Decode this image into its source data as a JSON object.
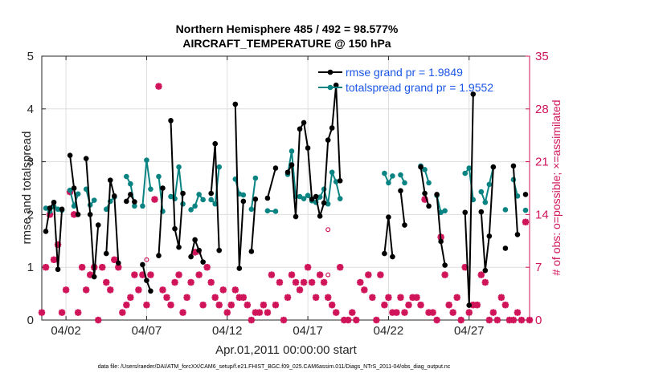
{
  "chart_data": {
    "type": "line",
    "title": "Northern Hemisphere 485 / 492 = 98.577%",
    "subtitle": "AIRCRAFT_TEMPERATURE @ 150 hPa",
    "xlabel": "Apr.01,2011 00:00:00 start",
    "ylabel": "rmse and totalspread",
    "ylabel_right": "# of obs: o=possible; ×=assimilated",
    "footer": "data file: /Users/raeder/DAI/ATM_forcXX/CAM6_setup/f.e21.FHIST_BGC.f09_025.CAM6assim.011/Diags_NTrS_2011-04/obs_diag_output.nc",
    "xlim": [
      0.5,
      30.75
    ],
    "ylim": [
      0,
      5
    ],
    "ylim_right": [
      0,
      35
    ],
    "x_ticks": [
      {
        "x": 2,
        "label": "04/02"
      },
      {
        "x": 7,
        "label": "04/07"
      },
      {
        "x": 12,
        "label": "04/12"
      },
      {
        "x": 17,
        "label": "04/17"
      },
      {
        "x": 22,
        "label": "04/22"
      },
      {
        "x": 27,
        "label": "04/27"
      }
    ],
    "y_ticks": [
      {
        "v": 0,
        "label": "0"
      },
      {
        "v": 1,
        "label": "1"
      },
      {
        "v": 2,
        "label": "2"
      },
      {
        "v": 3,
        "label": "3"
      },
      {
        "v": 4,
        "label": "4"
      },
      {
        "v": 5,
        "label": "5"
      }
    ],
    "y_ticks_right": [
      {
        "v": 0,
        "label": "0"
      },
      {
        "v": 7,
        "label": "7"
      },
      {
        "v": 14,
        "label": "14"
      },
      {
        "v": 21,
        "label": "21"
      },
      {
        "v": 28,
        "label": "28"
      },
      {
        "v": 35,
        "label": "35"
      }
    ],
    "grid": true,
    "legend": {
      "placement": "top-right",
      "entries": [
        "rmse grand pr = 1.9849",
        "totalspread grand pr = 1.9552"
      ]
    },
    "series": [
      {
        "name": "rmse grand pr = 1.9849",
        "color": "#000000",
        "segments": [
          [
            [
              0.75,
              1.68
            ],
            [
              1.0,
              2.12
            ],
            [
              1.25,
              2.23
            ],
            [
              1.5,
              0.96
            ],
            [
              1.75,
              2.1
            ]
          ],
          [
            [
              2.25,
              3.12
            ],
            [
              2.5,
              2.5
            ],
            [
              2.75,
              2.0
            ]
          ],
          [
            [
              3.25,
              3.06
            ],
            [
              3.5,
              2.0
            ],
            [
              3.75,
              0.82
            ],
            [
              4.0,
              1.8
            ]
          ],
          [
            [
              4.5,
              1.26
            ],
            [
              4.75,
              2.65
            ],
            [
              5.0,
              2.35
            ],
            [
              5.25,
              1.08
            ]
          ],
          [
            [
              5.75,
              2.25
            ],
            [
              6.0,
              2.38
            ],
            [
              6.25,
              2.24
            ]
          ],
          [
            [
              6.75,
              1.05
            ],
            [
              7.0,
              0.75
            ],
            [
              7.25,
              0.55
            ]
          ],
          [
            [
              7.75,
              1.22
            ],
            [
              8.0,
              2.5
            ]
          ],
          [
            [
              8.5,
              3.78
            ],
            [
              8.75,
              1.73
            ],
            [
              9.0,
              1.38
            ],
            [
              9.25,
              2.4
            ]
          ],
          [
            [
              9.75,
              1.2
            ],
            [
              10.0,
              1.52
            ],
            [
              10.25,
              1.32
            ],
            [
              10.5,
              1.1
            ]
          ],
          [
            [
              11.0,
              2.4
            ],
            [
              11.25,
              3.34
            ],
            [
              11.5,
              1.32
            ]
          ],
          [
            [
              12.5,
              4.09
            ],
            [
              12.75,
              0.98
            ],
            [
              13.0,
              2.25
            ]
          ],
          [
            [
              13.5,
              1.3
            ],
            [
              13.75,
              2.29
            ]
          ],
          [
            [
              14.5,
              2.31
            ],
            [
              15.0,
              2.88
            ]
          ],
          [
            [
              15.75,
              2.8
            ],
            [
              16.0,
              2.94
            ],
            [
              16.25,
              1.96
            ],
            [
              16.5,
              3.62
            ],
            [
              16.75,
              3.74
            ],
            [
              17.0,
              3.26
            ],
            [
              17.25,
              2.29
            ],
            [
              17.5,
              2.34
            ],
            [
              17.75,
              1.97
            ],
            [
              18.0,
              2.22
            ],
            [
              18.25,
              3.41
            ],
            [
              18.5,
              3.64
            ],
            [
              18.75,
              4.45
            ],
            [
              19.0,
              2.64
            ]
          ],
          [
            [
              21.75,
              1.26
            ],
            [
              22.0,
              1.95
            ],
            [
              22.25,
              1.2
            ]
          ],
          [
            [
              22.75,
              2.45
            ],
            [
              23.0,
              1.8
            ]
          ],
          [
            [
              24.0,
              2.9
            ],
            [
              24.25,
              2.4
            ],
            [
              24.5,
              2.16
            ]
          ],
          [
            [
              25.0,
              2.38
            ],
            [
              25.25,
              1.49
            ],
            [
              25.5,
              1.04
            ]
          ],
          [
            [
              26.75,
              2.04
            ],
            [
              27.0,
              0.28
            ],
            [
              27.25,
              4.28
            ]
          ],
          [
            [
              27.75,
              2.05
            ],
            [
              28.0,
              0.94
            ],
            [
              28.25,
              1.59
            ],
            [
              28.5,
              2.9
            ]
          ],
          [
            [
              29.25,
              1.36
            ]
          ],
          [
            [
              29.75,
              2.92
            ],
            [
              30.0,
              1.62
            ]
          ],
          [
            [
              30.5,
              2.38
            ]
          ]
        ]
      },
      {
        "name": "totalspread grand pr = 1.9552",
        "color": "#0a8482",
        "segments": [
          [
            [
              0.75,
              2.12
            ],
            [
              1.0,
              2.06
            ],
            [
              1.25,
              2.15
            ],
            [
              1.5,
              2.1
            ],
            [
              1.75,
              2.08
            ]
          ],
          [
            [
              2.25,
              2.46
            ],
            [
              2.5,
              2.16
            ],
            [
              2.75,
              2.39
            ]
          ],
          [
            [
              3.25,
              2.48
            ],
            [
              3.5,
              2.18
            ],
            [
              3.75,
              2.27
            ]
          ],
          [
            [
              4.5,
              2.1
            ],
            [
              4.75,
              2.25
            ],
            [
              5.0,
              2.33
            ]
          ],
          [
            [
              5.75,
              2.72
            ],
            [
              6.0,
              2.58
            ],
            [
              6.25,
              2.16
            ]
          ],
          [
            [
              6.75,
              2.16
            ],
            [
              7.0,
              3.03
            ],
            [
              7.25,
              2.48
            ]
          ],
          [
            [
              7.75,
              2.72
            ],
            [
              8.0,
              2.06
            ]
          ],
          [
            [
              8.5,
              2.34
            ],
            [
              8.75,
              2.3
            ],
            [
              9.0,
              2.9
            ],
            [
              9.25,
              2.2
            ]
          ],
          [
            [
              9.75,
              2.09
            ],
            [
              10.0,
              2.16
            ],
            [
              10.25,
              2.38
            ],
            [
              10.5,
              2.28
            ]
          ],
          [
            [
              11.0,
              2.28
            ],
            [
              11.25,
              2.2
            ],
            [
              11.5,
              2.9
            ]
          ],
          [
            [
              12.5,
              2.67
            ],
            [
              12.75,
              2.39
            ],
            [
              13.0,
              2.37
            ]
          ],
          [
            [
              13.5,
              2.1
            ],
            [
              13.75,
              2.69
            ]
          ],
          [
            [
              14.5,
              2.07
            ],
            [
              15.0,
              2.06
            ]
          ],
          [
            [
              15.75,
              2.76
            ],
            [
              16.0,
              3.2
            ],
            [
              16.25,
              2.34
            ],
            [
              16.5,
              2.34
            ],
            [
              16.75,
              2.3
            ],
            [
              17.0,
              2.36
            ],
            [
              17.25,
              2.26
            ],
            [
              17.5,
              2.23
            ],
            [
              17.75,
              2.33
            ],
            [
              18.0,
              2.48
            ],
            [
              18.25,
              2.2
            ],
            [
              18.5,
              2.8
            ],
            [
              18.75,
              2.62
            ],
            [
              19.0,
              2.3
            ]
          ],
          [
            [
              21.75,
              2.78
            ],
            [
              22.0,
              2.6
            ],
            [
              22.25,
              2.73
            ]
          ],
          [
            [
              22.75,
              2.75
            ],
            [
              23.0,
              2.6
            ]
          ],
          [
            [
              24.0,
              2.92
            ],
            [
              24.25,
              2.85
            ],
            [
              24.5,
              2.6
            ]
          ],
          [
            [
              25.0,
              2.36
            ],
            [
              25.25,
              2.04
            ],
            [
              25.5,
              2.07
            ]
          ],
          [
            [
              26.75,
              2.78
            ],
            [
              27.0,
              2.88
            ],
            [
              27.25,
              2.28
            ]
          ],
          [
            [
              27.75,
              2.43
            ],
            [
              28.0,
              2.23
            ],
            [
              28.25,
              2.57
            ],
            [
              28.5,
              2.9
            ]
          ],
          [
            [
              29.25,
              2.09
            ]
          ],
          [
            [
              29.75,
              2.66
            ],
            [
              30.0,
              2.35
            ]
          ],
          [
            [
              30.5,
              2.08
            ]
          ]
        ]
      }
    ],
    "obs_assimilated": [
      [
        0.5,
        1
      ],
      [
        0.75,
        7
      ],
      [
        1.0,
        14
      ],
      [
        1.25,
        8
      ],
      [
        1.5,
        10
      ],
      [
        1.75,
        1
      ],
      [
        2.0,
        4
      ],
      [
        2.25,
        17
      ],
      [
        2.5,
        14
      ],
      [
        2.75,
        1
      ],
      [
        3.0,
        7
      ],
      [
        3.25,
        4
      ],
      [
        3.5,
        6
      ],
      [
        3.75,
        7
      ],
      [
        4.0,
        0
      ],
      [
        4.25,
        7
      ],
      [
        4.5,
        5
      ],
      [
        4.75,
        4
      ],
      [
        5.0,
        8
      ],
      [
        5.25,
        7
      ],
      [
        5.5,
        1
      ],
      [
        5.75,
        2
      ],
      [
        6.0,
        3
      ],
      [
        6.25,
        6
      ],
      [
        6.5,
        4
      ],
      [
        6.75,
        6
      ],
      [
        7.0,
        2
      ],
      [
        7.25,
        6
      ],
      [
        7.5,
        16
      ],
      [
        7.75,
        31
      ],
      [
        8.0,
        4
      ],
      [
        8.25,
        3
      ],
      [
        8.5,
        2
      ],
      [
        8.75,
        5
      ],
      [
        9.0,
        6
      ],
      [
        9.25,
        1
      ],
      [
        9.5,
        3
      ],
      [
        9.75,
        5
      ],
      [
        10.0,
        9
      ],
      [
        10.25,
        6
      ],
      [
        10.5,
        2
      ],
      [
        10.75,
        7
      ],
      [
        11.0,
        5
      ],
      [
        11.25,
        3
      ],
      [
        11.5,
        2
      ],
      [
        11.75,
        4
      ],
      [
        12.0,
        1
      ],
      [
        12.25,
        2
      ],
      [
        12.5,
        4
      ],
      [
        12.75,
        3
      ],
      [
        13.0,
        3
      ],
      [
        13.25,
        2
      ],
      [
        13.5,
        0
      ],
      [
        13.75,
        1
      ],
      [
        14.0,
        1
      ],
      [
        14.25,
        2
      ],
      [
        14.5,
        1
      ],
      [
        14.75,
        6
      ],
      [
        15.0,
        2
      ],
      [
        15.25,
        5
      ],
      [
        15.5,
        0
      ],
      [
        15.75,
        3
      ],
      [
        16.0,
        6
      ],
      [
        16.25,
        5
      ],
      [
        16.5,
        4
      ],
      [
        16.75,
        5
      ],
      [
        17.0,
        7
      ],
      [
        17.25,
        5
      ],
      [
        17.5,
        3
      ],
      [
        17.75,
        6
      ],
      [
        18.0,
        5
      ],
      [
        18.25,
        3
      ],
      [
        18.5,
        2
      ],
      [
        18.75,
        1
      ],
      [
        19.0,
        7
      ],
      [
        19.25,
        0
      ],
      [
        19.5,
        0
      ],
      [
        19.75,
        1
      ],
      [
        20.0,
        0
      ],
      [
        20.25,
        5
      ],
      [
        20.5,
        4
      ],
      [
        20.75,
        6
      ],
      [
        21.0,
        3
      ],
      [
        21.25,
        0
      ],
      [
        21.5,
        6
      ],
      [
        21.75,
        2
      ],
      [
        22.0,
        3
      ],
      [
        22.25,
        1
      ],
      [
        22.5,
        1
      ],
      [
        22.75,
        3
      ],
      [
        23.0,
        1
      ],
      [
        23.25,
        2
      ],
      [
        23.5,
        3
      ],
      [
        23.75,
        3
      ],
      [
        24.0,
        2
      ],
      [
        24.25,
        16
      ],
      [
        24.5,
        1
      ],
      [
        24.75,
        1
      ],
      [
        25.0,
        0
      ],
      [
        25.25,
        11
      ],
      [
        25.5,
        6
      ],
      [
        25.75,
        2
      ],
      [
        26.0,
        1
      ],
      [
        26.25,
        3
      ],
      [
        26.5,
        0
      ],
      [
        26.75,
        7
      ],
      [
        27.0,
        1
      ],
      [
        27.25,
        2
      ],
      [
        27.5,
        2
      ],
      [
        27.75,
        6
      ],
      [
        28.0,
        5
      ],
      [
        28.25,
        0
      ],
      [
        28.5,
        1
      ],
      [
        28.75,
        0
      ],
      [
        29.0,
        3
      ],
      [
        29.25,
        2
      ],
      [
        29.5,
        0
      ],
      [
        29.75,
        0
      ],
      [
        30.0,
        1
      ],
      [
        30.25,
        0
      ],
      [
        30.5,
        13
      ],
      [
        30.75,
        0
      ]
    ],
    "obs_possible": [
      [
        7.0,
        8
      ],
      [
        10.25,
        9
      ],
      [
        18.25,
        12
      ],
      [
        18.25,
        6
      ]
    ]
  }
}
